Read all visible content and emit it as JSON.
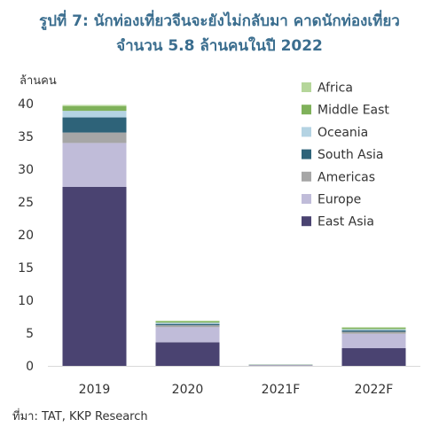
{
  "title_line1": "รูปที่ 7: นักท่องเที่ยวจีนจะยังไม่กลับมา คาดนักท่องเที่ยว",
  "title_line2": "จำนวน 5.8 ล้านคนในปี 2022",
  "source": "ที่มา: TAT, KKP Research",
  "chart_data": {
    "type": "bar",
    "stacked": true,
    "ylabel": "ล้านคน",
    "ylim": [
      0,
      40
    ],
    "yticks": [
      0,
      5,
      10,
      15,
      20,
      25,
      30,
      35,
      40
    ],
    "grid": false,
    "legend_position": "top-right",
    "categories": [
      "2019",
      "2020",
      "2021F",
      "2022F"
    ],
    "series": [
      {
        "name": "East Asia",
        "color": "#4a4371",
        "values": [
          27.3,
          3.6,
          0.05,
          2.7
        ]
      },
      {
        "name": "Europe",
        "color": "#c0bcd9",
        "values": [
          6.7,
          2.3,
          0.06,
          2.2
        ]
      },
      {
        "name": "Americas",
        "color": "#a6a6a6",
        "values": [
          1.6,
          0.3,
          0.03,
          0.3
        ]
      },
      {
        "name": "South Asia",
        "color": "#2e6379",
        "values": [
          2.3,
          0.2,
          0.03,
          0.2
        ]
      },
      {
        "name": "Oceania",
        "color": "#b4d3e3",
        "values": [
          1.0,
          0.2,
          0.02,
          0.2
        ]
      },
      {
        "name": "Middle East",
        "color": "#7fb15a",
        "values": [
          0.7,
          0.2,
          0.02,
          0.2
        ]
      },
      {
        "name": "Africa",
        "color": "#b5d69a",
        "values": [
          0.2,
          0.1,
          0.01,
          0.1
        ]
      }
    ]
  }
}
